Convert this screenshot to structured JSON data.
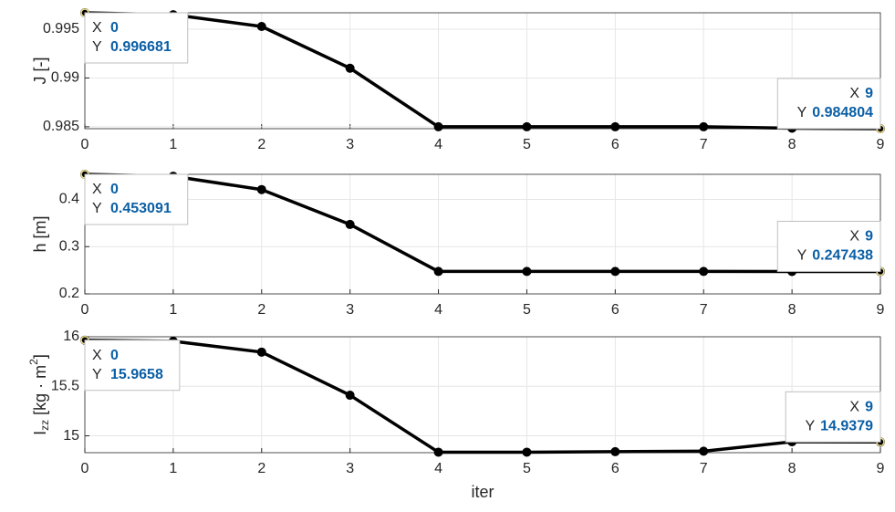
{
  "chart_data": [
    {
      "type": "line",
      "ylabel": "J [-]",
      "x": [
        0,
        1,
        2,
        3,
        4,
        5,
        6,
        7,
        8,
        9
      ],
      "series": [
        {
          "color": "#000000",
          "values": [
            0.996681,
            0.99648,
            0.99528,
            0.991,
            0.985,
            0.985,
            0.985,
            0.985,
            0.98485,
            0.984804
          ]
        }
      ],
      "xlim": [
        0,
        9
      ],
      "ylim": [
        0.984804,
        0.996681
      ],
      "xticks": [
        0,
        1,
        2,
        3,
        4,
        5,
        6,
        7,
        8,
        9
      ],
      "yticks": [
        0.985,
        0.99,
        0.995
      ],
      "grid": true,
      "datatip_labels": [
        "X",
        "Y"
      ],
      "datatips": [
        0,
        9
      ]
    },
    {
      "type": "line",
      "ylabel": "h [m]",
      "x": [
        0,
        1,
        2,
        3,
        4,
        5,
        6,
        7,
        8,
        9
      ],
      "series": [
        {
          "color": "#000000",
          "values": [
            0.453091,
            0.449,
            0.4208,
            0.347,
            0.2475,
            0.2475,
            0.2475,
            0.2475,
            0.2474,
            0.247438
          ]
        }
      ],
      "xlim": [
        0,
        9
      ],
      "ylim": [
        0.2,
        0.453091
      ],
      "xticks": [
        0,
        1,
        2,
        3,
        4,
        5,
        6,
        7,
        8,
        9
      ],
      "yticks": [
        0.2,
        0.3,
        0.4
      ],
      "grid": true,
      "datatip_labels": [
        "X",
        "Y"
      ],
      "datatips": [
        0,
        9
      ]
    },
    {
      "type": "line",
      "ylabel": [
        {
          "text": "I"
        },
        {
          "text": "zz",
          "shift": "sub"
        },
        {
          "text": " [kg · m"
        },
        {
          "text": "2",
          "shift": "super"
        },
        {
          "text": "]"
        }
      ],
      "xlabel": "iter",
      "x": [
        0,
        1,
        2,
        3,
        4,
        5,
        6,
        7,
        8,
        9
      ],
      "series": [
        {
          "color": "#000000",
          "values": [
            15.9658,
            15.955,
            15.845,
            15.41,
            14.835,
            14.835,
            14.84,
            14.845,
            14.94,
            14.9379
          ]
        }
      ],
      "xlim": [
        0,
        9
      ],
      "ylim": [
        14.83,
        16
      ],
      "xticks": [
        0,
        1,
        2,
        3,
        4,
        5,
        6,
        7,
        8,
        9
      ],
      "yticks": [
        15,
        15.5,
        16
      ],
      "grid": true,
      "datatip_labels": [
        "X",
        "Y"
      ],
      "datatips": [
        0,
        9
      ]
    }
  ]
}
